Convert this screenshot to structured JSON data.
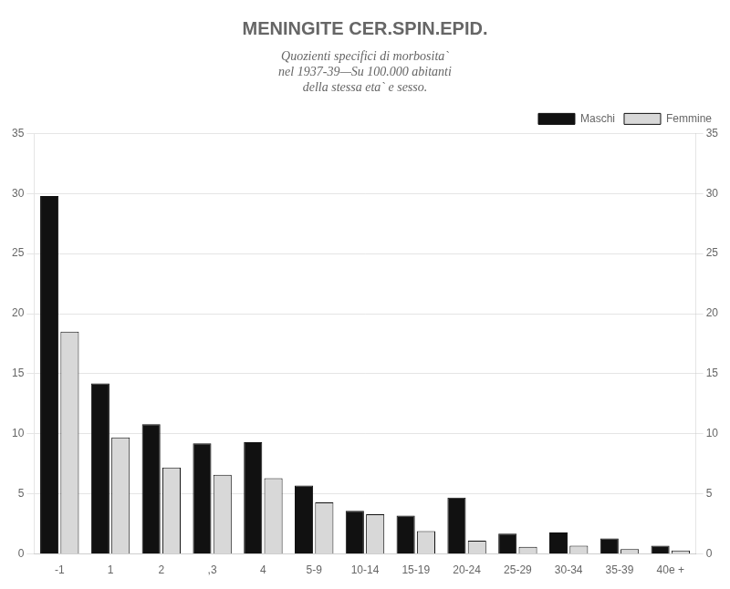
{
  "chart_data": {
    "type": "bar",
    "title": "MENINGITE CER.SPIN.EPID.",
    "subtitle": [
      "Quozienti specifici di morbosita`",
      "nel 1937-39—Su 100.000 abitanti",
      "della stessa eta` e sesso."
    ],
    "categories": [
      "-1",
      "1",
      "2",
      ",3",
      "4",
      "5-9",
      "10-14",
      "15-19",
      "20-24",
      "25-29",
      "30-34",
      "35-39",
      "40e +"
    ],
    "series": [
      {
        "name": "Maschi",
        "color": "#111111",
        "values": [
          29.8,
          14.2,
          10.8,
          9.2,
          9.3,
          5.7,
          3.6,
          3.2,
          4.7,
          1.7,
          1.8,
          1.3,
          0.7
        ]
      },
      {
        "name": "Femmine",
        "color": "#d8d8d8",
        "values": [
          18.5,
          9.7,
          7.2,
          6.6,
          6.3,
          4.3,
          3.3,
          1.9,
          1.1,
          0.6,
          0.7,
          0.4,
          0.3
        ]
      }
    ],
    "ylim": [
      0,
      35
    ],
    "yticks": [
      0,
      5,
      10,
      15,
      20,
      25,
      30,
      35
    ],
    "y2lim": [
      0,
      35
    ],
    "y2ticks": [
      0,
      5,
      10,
      15,
      20,
      25,
      30,
      35
    ],
    "grid": true,
    "legend": "upper right"
  }
}
